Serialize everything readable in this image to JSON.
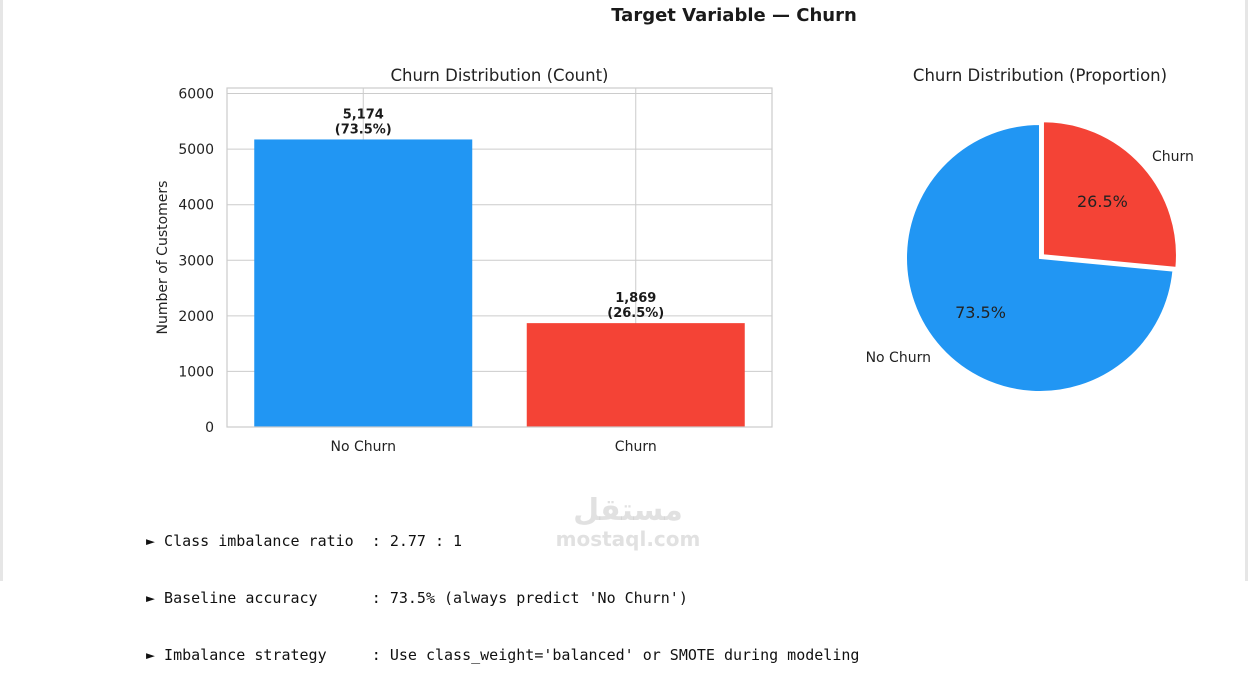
{
  "figure": {
    "title": "Target Variable — Churn"
  },
  "chart_data": [
    {
      "type": "bar",
      "title": "Churn Distribution (Count)",
      "xlabel": "",
      "ylabel": "Number of Customers",
      "categories": [
        "No Churn",
        "Churn"
      ],
      "values": [
        5174,
        1869
      ],
      "data_labels": [
        "5,174\n(73.5%)",
        "1,869\n(26.5%)"
      ],
      "colors": [
        "#2196F3",
        "#F44336"
      ],
      "ylim": [
        0,
        6100
      ],
      "yticks": [
        0,
        1000,
        2000,
        3000,
        4000,
        5000,
        6000
      ],
      "grid": true
    },
    {
      "type": "pie",
      "title": "Churn Distribution (Proportion)",
      "labels": [
        "No Churn",
        "Churn"
      ],
      "values": [
        73.5,
        26.5
      ],
      "pct_labels": [
        "73.5%",
        "26.5%"
      ],
      "colors": [
        "#2196F3",
        "#F44336"
      ]
    }
  ],
  "notes": [
    {
      "bullet": "►",
      "text": " Class imbalance ratio  : 2.77 : 1"
    },
    {
      "bullet": "►",
      "text": " Baseline accuracy      : 73.5% (always predict 'No Churn')"
    },
    {
      "bullet": "►",
      "text": " Imbalance strategy     : Use class_weight='balanced' or SMOTE during modeling"
    }
  ],
  "watermark": {
    "arabic": "مستقل",
    "latin": "mostaql.com"
  }
}
